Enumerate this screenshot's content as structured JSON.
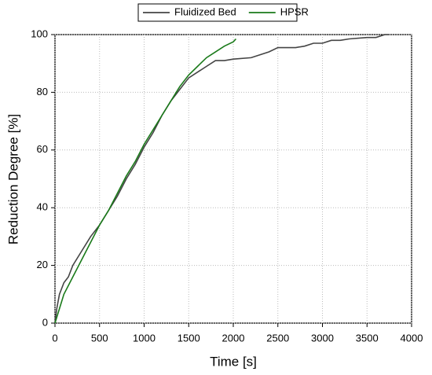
{
  "chart_data": {
    "type": "line",
    "xlabel": "Time [s]",
    "ylabel": "Reduction Degree [%]",
    "xlim": [
      0,
      4000
    ],
    "xticks": [
      0,
      500,
      1000,
      1500,
      2000,
      2500,
      3000,
      3500,
      4000
    ],
    "ylim": [
      0,
      100
    ],
    "yticks": [
      0,
      20,
      40,
      60,
      80,
      100
    ],
    "grid": true,
    "legend": "top",
    "series": [
      {
        "name": "Fluidized Bed",
        "color": "#444444",
        "x": [
          0,
          20,
          50,
          100,
          150,
          200,
          300,
          400,
          500,
          600,
          700,
          800,
          900,
          1000,
          1100,
          1200,
          1300,
          1400,
          1500,
          1600,
          1700,
          1800,
          1900,
          2000,
          2200,
          2400,
          2500,
          2600,
          2700,
          2800,
          2900,
          3000,
          3100,
          3200,
          3300,
          3500,
          3600,
          3700,
          3750
        ],
        "values": [
          0,
          5,
          10,
          14,
          16,
          20,
          25,
          30,
          34,
          39,
          44,
          50,
          55,
          61,
          66,
          72,
          77,
          81,
          85,
          87,
          89,
          91,
          91,
          91.5,
          92,
          94,
          95.5,
          95.5,
          95.5,
          96,
          97,
          97,
          98,
          98,
          98.5,
          99,
          99,
          100,
          100
        ]
      },
      {
        "name": "HPSR",
        "color": "#1a7a1a",
        "x": [
          0,
          50,
          100,
          200,
          300,
          400,
          500,
          600,
          700,
          800,
          900,
          1000,
          1100,
          1200,
          1300,
          1400,
          1500,
          1600,
          1700,
          1800,
          1900,
          2000,
          2030
        ],
        "values": [
          0,
          5,
          10,
          16,
          22,
          28,
          34,
          39,
          45,
          51,
          56,
          62,
          67,
          72,
          77,
          82,
          86,
          89,
          92,
          94,
          96,
          97.5,
          98.5
        ]
      }
    ]
  }
}
